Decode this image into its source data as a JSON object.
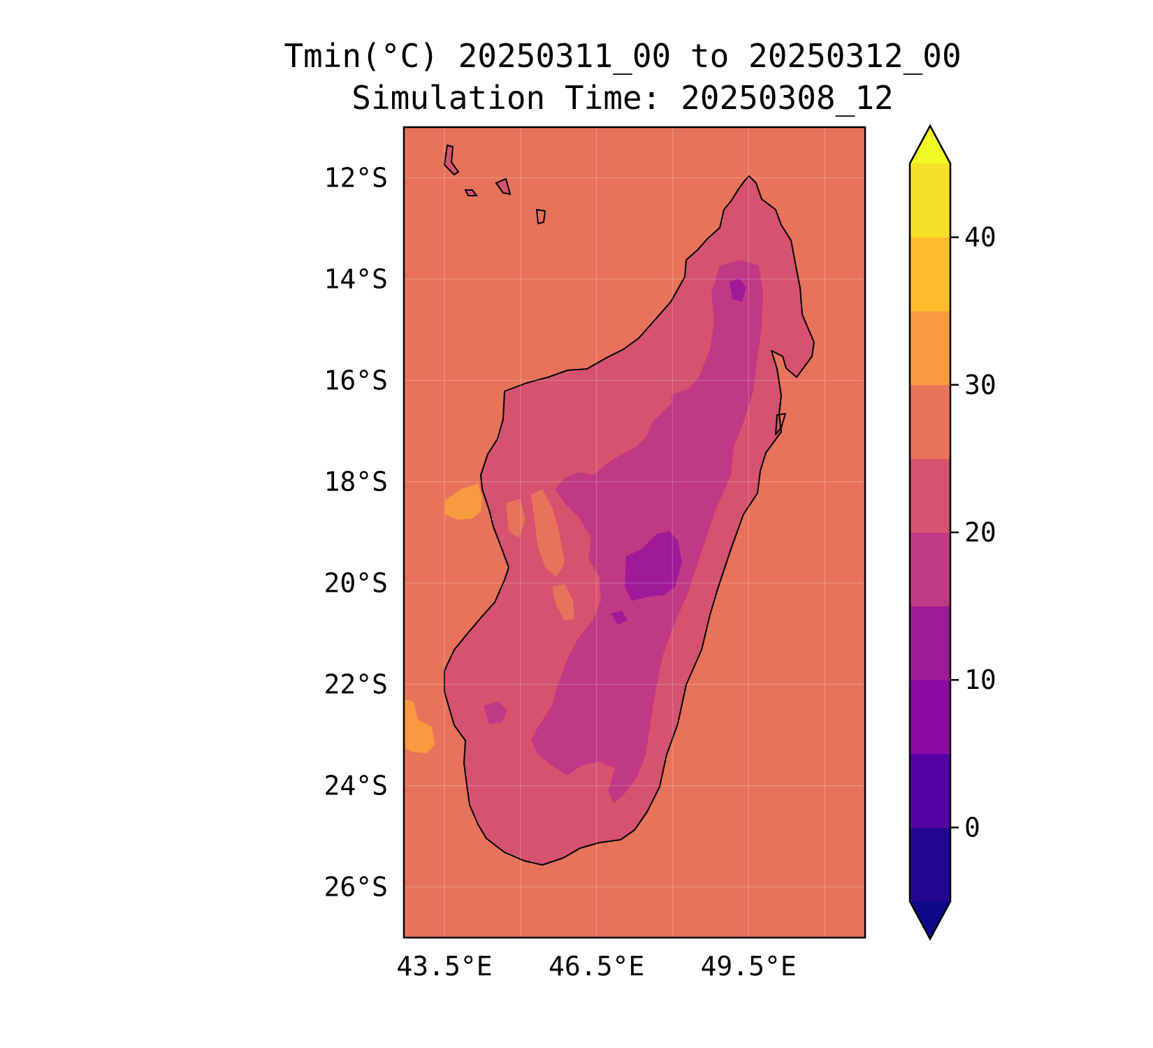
{
  "title": {
    "line1": "Tmin(°C) 20250311_00 to 20250312_00",
    "line2": "Simulation Time: 20250308_12"
  },
  "map": {
    "variable": "Tmin",
    "units": "°C",
    "region": "Madagascar",
    "lon_range": [
      42.7,
      51.8
    ],
    "lat_range": [
      -27.0,
      -11.0
    ],
    "background_band": "25-30",
    "lon_ticks": [
      {
        "value": 43.5,
        "label": "43.5°E"
      },
      {
        "value": 46.5,
        "label": "46.5°E"
      },
      {
        "value": 49.5,
        "label": "49.5°E"
      }
    ],
    "lat_ticks": [
      {
        "value": -12,
        "label": "12°S"
      },
      {
        "value": -14,
        "label": "14°S"
      },
      {
        "value": -16,
        "label": "16°S"
      },
      {
        "value": -18,
        "label": "18°S"
      },
      {
        "value": -20,
        "label": "20°S"
      },
      {
        "value": -22,
        "label": "22°S"
      },
      {
        "value": -24,
        "label": "24°S"
      },
      {
        "value": -26,
        "label": "26°S"
      }
    ],
    "land_bands": [
      "20-25",
      "15-20",
      "10-15"
    ],
    "sea_warm_band": "30-35"
  },
  "colorbar": {
    "extend": "both",
    "levels": [
      -5,
      0,
      5,
      10,
      15,
      20,
      25,
      30,
      35,
      40,
      45
    ],
    "colors": [
      "#220690",
      "#5402a3",
      "#8b0aa5",
      "#9e1a99",
      "#bf3984",
      "#d5536f",
      "#e8735b",
      "#f89a3f",
      "#febb2b",
      "#f5e027"
    ],
    "under_color": "#0d0887",
    "over_color": "#f0f921",
    "tick_values": [
      0,
      10,
      20,
      30,
      40
    ],
    "tick_labels": [
      "0",
      "10",
      "20",
      "30",
      "40"
    ]
  },
  "colors": {
    "ocean": "#e8735b",
    "band_20_25": "#d5536f",
    "band_15_20": "#bf3984",
    "band_10_15": "#9e1a99",
    "band_30_35": "#f89a3f"
  }
}
